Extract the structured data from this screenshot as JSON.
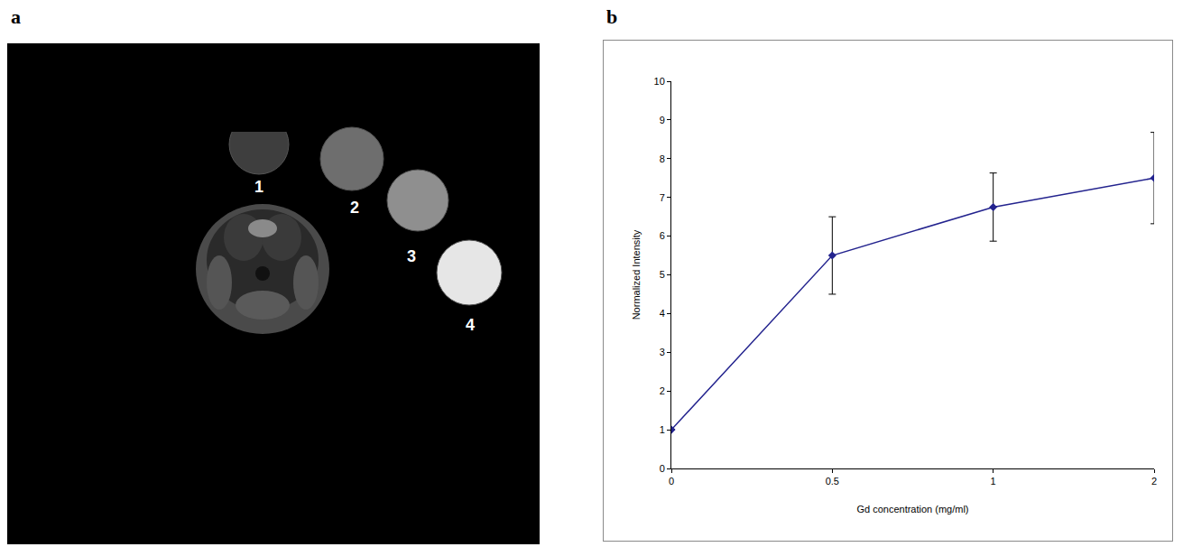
{
  "panel_a": {
    "label": "a",
    "markers": [
      {
        "label": "1"
      },
      {
        "label": "2"
      },
      {
        "label": "3"
      },
      {
        "label": "4"
      }
    ]
  },
  "chart_data": {
    "panel_label": "b",
    "type": "line",
    "x_label": "Gd concentration (mg/ml)",
    "y_label": "Normalized Intensity",
    "categories": [
      "0",
      "0.5",
      "1",
      "2"
    ],
    "series": [
      {
        "name": "Normalized Intensity",
        "color": "#23238e",
        "marker": "diamond",
        "line_style": "solid",
        "values": [
          1,
          5.5,
          6.75,
          7.5
        ],
        "errors": [
          0,
          1.0,
          0.88,
          1.18
        ]
      }
    ],
    "ylim": [
      0,
      10
    ],
    "yticks": [
      0,
      1,
      2,
      3,
      4,
      5,
      6,
      7,
      8,
      9,
      10
    ],
    "grid": false
  }
}
